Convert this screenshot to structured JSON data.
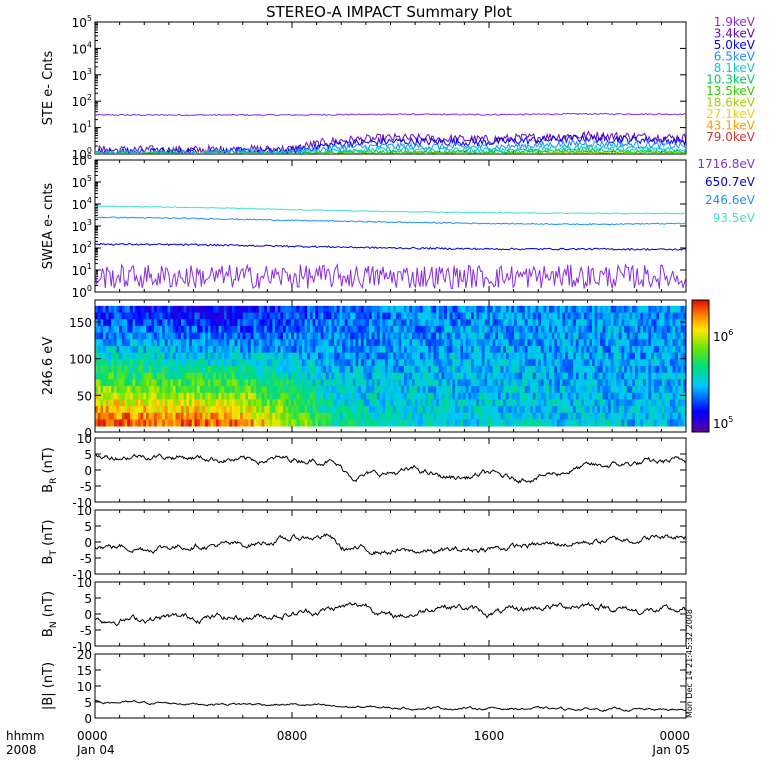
{
  "title": "STEREO-A IMPACT Summary Plot",
  "timestamp": "Mon Dec 14 21:45:32 2008",
  "time_axis": {
    "ticks": [
      {
        "hhmm": "0000",
        "date": "Jan 04"
      },
      {
        "hhmm": "0800",
        "date": ""
      },
      {
        "hhmm": "1600",
        "date": ""
      },
      {
        "hhmm": "0000",
        "date": "Jan 05"
      }
    ],
    "row_label_1": "hhmm",
    "row_label_2": "2008"
  },
  "colors": {
    "ste_channels": [
      "#8a2be2",
      "#6a0dad",
      "#0000ff",
      "#1e90ff",
      "#00ced1",
      "#00cc66",
      "#33cc00",
      "#aacc00",
      "#ffcc00",
      "#ff9900",
      "#cc3333"
    ],
    "swea_channels": [
      "#8a2be2",
      "#0000cd",
      "#1e90ff",
      "#40e0d0"
    ]
  },
  "chart_data": [
    {
      "type": "line",
      "id": "ste",
      "ylabel": "STE e- Cnts",
      "yscale": "log",
      "ylim": [
        1,
        100000
      ],
      "ytick_labels": [
        "10^0",
        "10^1",
        "10^2",
        "10^3",
        "10^4",
        "10^5"
      ],
      "x_hours": [
        0,
        4,
        8,
        10,
        12,
        16,
        20,
        24
      ],
      "series": [
        {
          "name": "1.9keV",
          "values": [
            30,
            30,
            30,
            31,
            32,
            31,
            33,
            32
          ]
        },
        {
          "name": "3.4keV",
          "values": [
            1.4,
            1.4,
            1.5,
            3.2,
            4.0,
            3.5,
            5.0,
            4.0
          ]
        },
        {
          "name": "5.0keV",
          "values": [
            1.2,
            1.2,
            1.3,
            2.5,
            3.0,
            2.8,
            4.0,
            3.0
          ]
        },
        {
          "name": "6.5keV",
          "values": [
            1.1,
            1.1,
            1.2,
            1.8,
            2.0,
            1.8,
            2.5,
            2.0
          ]
        },
        {
          "name": "8.1keV",
          "values": [
            1.05,
            1.05,
            1.1,
            1.4,
            1.5,
            1.4,
            1.8,
            1.5
          ]
        },
        {
          "name": "10.3keV",
          "values": [
            1,
            1,
            1,
            1.2,
            1.2,
            1.2,
            1.4,
            1.2
          ]
        },
        {
          "name": "13.5keV",
          "values": [
            1,
            1,
            1,
            1.1,
            1.1,
            1.1,
            1.2,
            1.1
          ]
        },
        {
          "name": "18.6keV",
          "values": [
            1,
            1,
            1,
            1,
            1,
            1,
            1.1,
            1
          ]
        },
        {
          "name": "27.1keV",
          "values": [
            1,
            1,
            1,
            1,
            1,
            1,
            1,
            1
          ]
        },
        {
          "name": "43.1keV",
          "values": [
            1,
            1,
            1,
            1,
            1,
            1,
            1,
            1
          ]
        },
        {
          "name": "79.0keV",
          "values": [
            1,
            1,
            1,
            1,
            1,
            1,
            1,
            1
          ]
        }
      ]
    },
    {
      "type": "line",
      "id": "swea",
      "ylabel": "SWEA e- cnts",
      "yscale": "log",
      "ylim": [
        1,
        1000000
      ],
      "ytick_labels": [
        "10^0",
        "10^1",
        "10^2",
        "10^3",
        "10^4",
        "10^5",
        "10^6"
      ],
      "x_hours": [
        0,
        4,
        8,
        12,
        16,
        20,
        24
      ],
      "series": [
        {
          "name": "1716.8eV",
          "values": [
            5,
            5,
            5,
            5,
            5,
            5,
            5
          ]
        },
        {
          "name": "650.7eV",
          "values": [
            150,
            140,
            120,
            100,
            90,
            90,
            85
          ]
        },
        {
          "name": "246.6eV",
          "values": [
            2500,
            2200,
            1800,
            1500,
            1300,
            1200,
            1300
          ]
        },
        {
          "name": "93.5eV",
          "values": [
            8000,
            7000,
            5500,
            4500,
            4000,
            3800,
            3700
          ]
        }
      ]
    },
    {
      "type": "heatmap",
      "id": "pad",
      "ylabel": "246.6 eV",
      "ylim": [
        0,
        180
      ],
      "ytick_labels": [
        "0",
        "50",
        "100",
        "150"
      ],
      "colorbar_labels": [
        "10^5",
        "10^6"
      ],
      "description_values": {
        "x_hours": [
          0,
          6,
          10,
          16,
          24
        ],
        "low_angle_level": [
          0.95,
          0.9,
          0.45,
          0.4,
          0.35
        ],
        "high_angle_level": [
          0.2,
          0.15,
          0.25,
          0.3,
          0.3
        ]
      }
    },
    {
      "type": "line",
      "id": "br",
      "ylabel": "B_R (nT)",
      "ylim": [
        -10,
        10
      ],
      "ytick_labels": [
        "10",
        "5",
        "0",
        "-5",
        "-10"
      ],
      "x_hours": [
        0,
        2,
        4,
        6,
        8,
        9.5,
        10.5,
        12,
        13,
        14,
        15,
        16,
        17,
        18,
        20,
        22,
        24
      ],
      "values": [
        4,
        4.5,
        4,
        3,
        3.5,
        3,
        -2,
        -1,
        0,
        -2,
        -2.5,
        -1,
        -3,
        -2,
        1,
        2,
        3
      ]
    },
    {
      "type": "line",
      "id": "bt",
      "ylabel": "B_T (nT)",
      "ylim": [
        -10,
        10
      ],
      "ytick_labels": [
        "10",
        "5",
        "0",
        "-5",
        "-10"
      ],
      "x_hours": [
        0,
        2,
        4,
        6,
        8,
        9.5,
        10,
        12,
        14,
        16,
        18,
        20,
        22,
        24
      ],
      "values": [
        -1,
        -2,
        -1,
        -1,
        1,
        2,
        -2,
        -3,
        -3,
        -2,
        -1,
        0,
        1,
        2
      ]
    },
    {
      "type": "line",
      "id": "bn",
      "ylabel": "B_N (nT)",
      "ylim": [
        -10,
        10
      ],
      "ytick_labels": [
        "10",
        "5",
        "0",
        "-5",
        "-10"
      ],
      "x_hours": [
        0,
        2,
        4,
        6,
        8,
        10,
        11,
        12,
        13,
        14,
        15,
        16,
        18,
        20,
        22,
        24
      ],
      "values": [
        -2,
        -1.5,
        -1,
        -1,
        0,
        2,
        3,
        -1,
        0,
        3,
        2,
        0,
        2,
        3,
        1,
        1
      ]
    },
    {
      "type": "line",
      "id": "bmag",
      "ylabel": "|B| (nT)",
      "ylim": [
        0,
        20
      ],
      "ytick_labels": [
        "20",
        "15",
        "10",
        "5",
        "0"
      ],
      "x_hours": [
        0,
        4,
        8,
        10,
        12,
        16,
        20,
        24
      ],
      "values": [
        5,
        4.5,
        4.2,
        3.5,
        3.2,
        3,
        2.8,
        2.5
      ]
    }
  ]
}
